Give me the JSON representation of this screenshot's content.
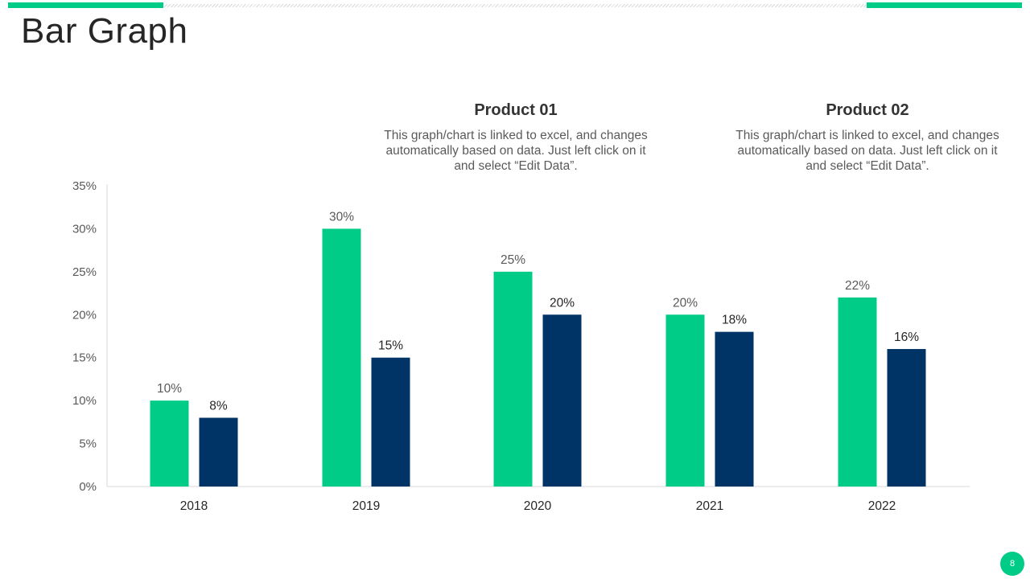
{
  "title": "Bar Graph",
  "legend": [
    {
      "name": "Product 01",
      "description": "This graph/chart is linked to excel, and changes automatically based on data. Just left click on it and select “Edit Data”."
    },
    {
      "name": "Product 02",
      "description": "This graph/chart is linked to excel, and changes automatically based on data. Just left click on it and select “Edit Data”."
    }
  ],
  "page_number": "8",
  "colors": {
    "accent": "#00cc88",
    "product_01": "#00cc88",
    "product_02": "#003366",
    "axis": "#d9d9d9",
    "tick_text": "#595959"
  },
  "chart_data": {
    "type": "bar",
    "title": "",
    "xlabel": "",
    "ylabel": "",
    "categories": [
      "2018",
      "2019",
      "2020",
      "2021",
      "2022"
    ],
    "series": [
      {
        "name": "Product 01",
        "values": [
          10,
          30,
          25,
          20,
          22
        ],
        "labels": [
          "10%",
          "30%",
          "25%",
          "20%",
          "22%"
        ]
      },
      {
        "name": "Product 02",
        "values": [
          8,
          15,
          20,
          18,
          16
        ],
        "labels": [
          "8%",
          "15%",
          "20%",
          "18%",
          "16%"
        ]
      }
    ],
    "ylim": [
      0,
      35
    ],
    "yticks": [
      0,
      5,
      10,
      15,
      20,
      25,
      30,
      35
    ],
    "ytick_labels": [
      "0%",
      "5%",
      "10%",
      "15%",
      "20%",
      "25%",
      "30%",
      "35%"
    ],
    "grid": false,
    "legend_position": "top-right"
  }
}
